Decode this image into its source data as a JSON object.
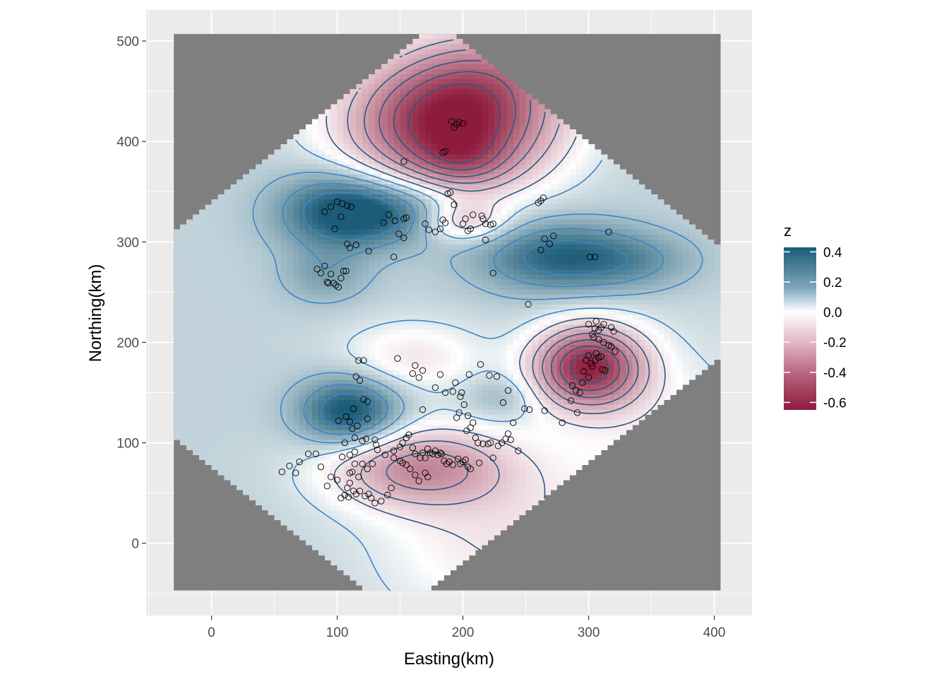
{
  "chart_data": {
    "type": "heatmap",
    "title": "",
    "xlabel": "Easting(km)",
    "ylabel": "Northing(km)",
    "xlim": [
      -52,
      430
    ],
    "ylim": [
      -72,
      531
    ],
    "x_ticks": [
      0,
      100,
      200,
      300,
      400
    ],
    "y_ticks": [
      0,
      100,
      200,
      300,
      400,
      500
    ],
    "grid": true,
    "background_color": "#ebebeb",
    "na_fill_color": "#7f7f7f",
    "data_extent": {
      "x": [
        -30,
        405
      ],
      "y": [
        -47,
        507
      ]
    },
    "legend": {
      "title": "z",
      "position": "right",
      "labels": [
        "0.4",
        "0.2",
        "0.0",
        "-0.2",
        "-0.4",
        "-0.6"
      ],
      "values": [
        0.4,
        0.2,
        0.0,
        -0.2,
        -0.4,
        -0.6
      ],
      "range": [
        -0.65,
        0.43
      ],
      "colors": {
        "high": "#1b5c78",
        "mid": "#ffffff",
        "low": "#8d1b3d"
      }
    },
    "field_base": 0.1,
    "field_features": [
      {
        "x": 190,
        "y": 418,
        "sx": 55,
        "sy": 45,
        "amp": -0.75
      },
      {
        "x": 230,
        "y": 475,
        "sx": 50,
        "sy": 35,
        "amp": -0.2
      },
      {
        "x": 100,
        "y": 330,
        "sx": 35,
        "sy": 28,
        "amp": 0.3
      },
      {
        "x": 150,
        "y": 330,
        "sx": 40,
        "sy": 22,
        "amp": 0.25
      },
      {
        "x": 90,
        "y": 265,
        "sx": 25,
        "sy": 20,
        "amp": 0.12
      },
      {
        "x": 275,
        "y": 285,
        "sx": 45,
        "sy": 25,
        "amp": 0.3
      },
      {
        "x": 340,
        "y": 280,
        "sx": 35,
        "sy": 20,
        "amp": 0.12
      },
      {
        "x": 200,
        "y": 320,
        "sx": 25,
        "sy": 15,
        "amp": -0.25
      },
      {
        "x": 200,
        "y": 380,
        "sx": 25,
        "sy": 20,
        "amp": -0.15
      },
      {
        "x": 300,
        "y": 175,
        "sx": 30,
        "sy": 28,
        "amp": -0.7
      },
      {
        "x": 110,
        "y": 130,
        "sx": 28,
        "sy": 24,
        "amp": 0.38
      },
      {
        "x": 165,
        "y": 75,
        "sx": 50,
        "sy": 28,
        "amp": -0.38
      },
      {
        "x": 160,
        "y": 185,
        "sx": 40,
        "sy": 25,
        "amp": -0.15
      },
      {
        "x": 230,
        "y": 145,
        "sx": 20,
        "sy": 15,
        "amp": 0.1
      },
      {
        "x": 230,
        "y": 0,
        "sx": 70,
        "sy": 60,
        "amp": -0.15
      },
      {
        "x": 360,
        "y": 100,
        "sx": 60,
        "sy": 70,
        "amp": -0.1
      }
    ],
    "contour_levels": [
      -0.55,
      -0.45,
      -0.35,
      -0.25,
      -0.15,
      -0.05,
      0.05,
      0.15,
      0.25,
      0.35
    ],
    "contour_colors": {
      "negative": "#2b5a80",
      "positive": "#3f86c6"
    },
    "points": [
      [
        191,
        420
      ],
      [
        195,
        417
      ],
      [
        193,
        414
      ],
      [
        197,
        419
      ],
      [
        200,
        418
      ],
      [
        184,
        389
      ],
      [
        186,
        390
      ],
      [
        153,
        380
      ],
      [
        262,
        341
      ],
      [
        264,
        344
      ],
      [
        260,
        339
      ],
      [
        90,
        330
      ],
      [
        95,
        335
      ],
      [
        100,
        340
      ],
      [
        104,
        338
      ],
      [
        108,
        336
      ],
      [
        111,
        335
      ],
      [
        103,
        325
      ],
      [
        98,
        313
      ],
      [
        108,
        298
      ],
      [
        110,
        294
      ],
      [
        115,
        297
      ],
      [
        125,
        291
      ],
      [
        137,
        319
      ],
      [
        141,
        327
      ],
      [
        146,
        321
      ],
      [
        153,
        323
      ],
      [
        155,
        324
      ],
      [
        149,
        308
      ],
      [
        153,
        304
      ],
      [
        145,
        285
      ],
      [
        170,
        318
      ],
      [
        173,
        312
      ],
      [
        178,
        310
      ],
      [
        182,
        313
      ],
      [
        184,
        322
      ],
      [
        186,
        319
      ],
      [
        188,
        348
      ],
      [
        190,
        349
      ],
      [
        193,
        337
      ],
      [
        200,
        318
      ],
      [
        202,
        323
      ],
      [
        204,
        311
      ],
      [
        206,
        313
      ],
      [
        208,
        327
      ],
      [
        215,
        326
      ],
      [
        216,
        323
      ],
      [
        218,
        318
      ],
      [
        222,
        317
      ],
      [
        224,
        318
      ],
      [
        218,
        302
      ],
      [
        84,
        273
      ],
      [
        87,
        269
      ],
      [
        90,
        276
      ],
      [
        92,
        260
      ],
      [
        95,
        268
      ],
      [
        97,
        259
      ],
      [
        99,
        257
      ],
      [
        101,
        255
      ],
      [
        103,
        264
      ],
      [
        105,
        271
      ],
      [
        107,
        271
      ],
      [
        93,
        259
      ],
      [
        262,
        292
      ],
      [
        265,
        303
      ],
      [
        269,
        298
      ],
      [
        272,
        306
      ],
      [
        224,
        269
      ],
      [
        252,
        238
      ],
      [
        301,
        285
      ],
      [
        305,
        285
      ],
      [
        316,
        310
      ],
      [
        300,
        218
      ],
      [
        303,
        208
      ],
      [
        305,
        214
      ],
      [
        306,
        221
      ],
      [
        308,
        212
      ],
      [
        310,
        215
      ],
      [
        312,
        218
      ],
      [
        318,
        215
      ],
      [
        320,
        211
      ],
      [
        298,
        182
      ],
      [
        300,
        187
      ],
      [
        302,
        179
      ],
      [
        303,
        176
      ],
      [
        305,
        182
      ],
      [
        306,
        189
      ],
      [
        308,
        185
      ],
      [
        310,
        186
      ],
      [
        311,
        173
      ],
      [
        313,
        172
      ],
      [
        296,
        171
      ],
      [
        304,
        205
      ],
      [
        308,
        203
      ],
      [
        312,
        200
      ],
      [
        316,
        197
      ],
      [
        318,
        196
      ],
      [
        321,
        191
      ],
      [
        290,
        152
      ],
      [
        293,
        150
      ],
      [
        300,
        165
      ],
      [
        286,
        142
      ],
      [
        287,
        157
      ],
      [
        295,
        160
      ],
      [
        291,
        130
      ],
      [
        279,
        120
      ],
      [
        148,
        184
      ],
      [
        160,
        169
      ],
      [
        162,
        177
      ],
      [
        165,
        165
      ],
      [
        168,
        172
      ],
      [
        178,
        155
      ],
      [
        182,
        168
      ],
      [
        186,
        150
      ],
      [
        192,
        151
      ],
      [
        194,
        160
      ],
      [
        198,
        146
      ],
      [
        199,
        150
      ],
      [
        205,
        168
      ],
      [
        214,
        178
      ],
      [
        221,
        167
      ],
      [
        227,
        166
      ],
      [
        117,
        182
      ],
      [
        121,
        182
      ],
      [
        115,
        166
      ],
      [
        118,
        162
      ],
      [
        121,
        143
      ],
      [
        124,
        141
      ],
      [
        113,
        134
      ],
      [
        112,
        114
      ],
      [
        107,
        126
      ],
      [
        101,
        122
      ],
      [
        110,
        121
      ],
      [
        116,
        117
      ],
      [
        124,
        124
      ],
      [
        168,
        133
      ],
      [
        201,
        138
      ],
      [
        204,
        127
      ],
      [
        203,
        112
      ],
      [
        206,
        115
      ],
      [
        208,
        120
      ],
      [
        210,
        105
      ],
      [
        212,
        100
      ],
      [
        195,
        125
      ],
      [
        197,
        130
      ],
      [
        216,
        99
      ],
      [
        220,
        99
      ],
      [
        222,
        100
      ],
      [
        228,
        97
      ],
      [
        231,
        100
      ],
      [
        234,
        104
      ],
      [
        236,
        109
      ],
      [
        238,
        103
      ],
      [
        232,
        140
      ],
      [
        236,
        152
      ],
      [
        249,
        134
      ],
      [
        253,
        133
      ],
      [
        265,
        132
      ],
      [
        240,
        120
      ],
      [
        244,
        92
      ],
      [
        224,
        85
      ],
      [
        213,
        80
      ],
      [
        130,
        103
      ],
      [
        131,
        98
      ],
      [
        132,
        93
      ],
      [
        138,
        88
      ],
      [
        145,
        92
      ],
      [
        150,
        96
      ],
      [
        152,
        100
      ],
      [
        155,
        105
      ],
      [
        157,
        108
      ],
      [
        160,
        95
      ],
      [
        162,
        89
      ],
      [
        166,
        85
      ],
      [
        168,
        90
      ],
      [
        170,
        85
      ],
      [
        172,
        94
      ],
      [
        174,
        90
      ],
      [
        176,
        89
      ],
      [
        178,
        92
      ],
      [
        180,
        88
      ],
      [
        182,
        90
      ],
      [
        183,
        89
      ],
      [
        185,
        82
      ],
      [
        187,
        79
      ],
      [
        189,
        81
      ],
      [
        192,
        78
      ],
      [
        196,
        84
      ],
      [
        198,
        79
      ],
      [
        200,
        81
      ],
      [
        202,
        83
      ],
      [
        204,
        76
      ],
      [
        206,
        74
      ],
      [
        145,
        85
      ],
      [
        150,
        82
      ],
      [
        152,
        80
      ],
      [
        155,
        78
      ],
      [
        158,
        74
      ],
      [
        162,
        68
      ],
      [
        165,
        62
      ],
      [
        170,
        70
      ],
      [
        172,
        66
      ],
      [
        56,
        71
      ],
      [
        62,
        77
      ],
      [
        67,
        70
      ],
      [
        70,
        81
      ],
      [
        77,
        89
      ],
      [
        83,
        89
      ],
      [
        87,
        76
      ],
      [
        92,
        57
      ],
      [
        95,
        66
      ],
      [
        100,
        63
      ],
      [
        103,
        45
      ],
      [
        106,
        48
      ],
      [
        109,
        46
      ],
      [
        110,
        70
      ],
      [
        112,
        71
      ],
      [
        114,
        79
      ],
      [
        117,
        66
      ],
      [
        120,
        79
      ],
      [
        124,
        74
      ],
      [
        128,
        79
      ],
      [
        110,
        60
      ],
      [
        108,
        55
      ],
      [
        113,
        52
      ],
      [
        115,
        49
      ],
      [
        118,
        52
      ],
      [
        122,
        47
      ],
      [
        125,
        49
      ],
      [
        127,
        45
      ],
      [
        130,
        40
      ],
      [
        135,
        42
      ],
      [
        140,
        48
      ],
      [
        143,
        55
      ],
      [
        110,
        88
      ],
      [
        114,
        91
      ],
      [
        104,
        86
      ],
      [
        106,
        100
      ],
      [
        114,
        105
      ],
      [
        120,
        102
      ],
      [
        123,
        104
      ]
    ]
  }
}
